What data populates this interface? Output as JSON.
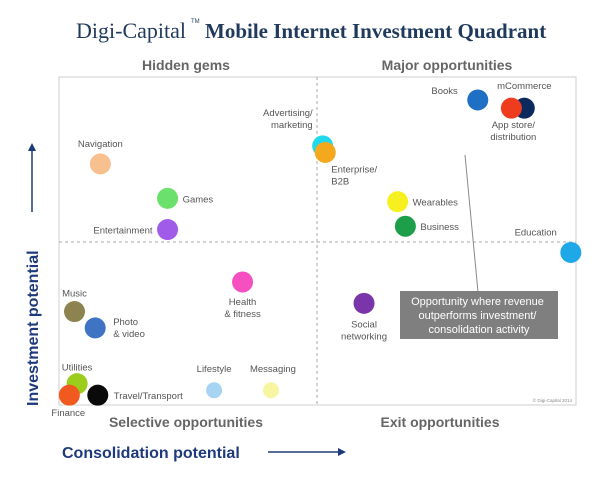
{
  "header": {
    "brand": "Digi-Capital",
    "trademark": "TM",
    "title": "Mobile Internet Investment Quadrant",
    "brand_color": "#1f3a5c",
    "title_color": "#1f3a5c"
  },
  "chart_data": {
    "type": "scatter",
    "xlabel": "Consolidation potential",
    "ylabel": "Investment potential",
    "xlim": [
      0,
      10
    ],
    "ylim": [
      0,
      10
    ],
    "grid": false,
    "quadrants": {
      "top_left": "Hidden gems",
      "top_right": "Major opportunities",
      "bottom_left": "Selective opportunities",
      "bottom_right": "Exit opportunities"
    },
    "callout": "Opportunity where revenue outperforms investment/ consolidation activity",
    "copyright": "© Digi-Capital 2014",
    "points": [
      {
        "label": "Books",
        "x": 8.1,
        "y": 9.3,
        "color": "#1f6fc4"
      },
      {
        "label": "mCommerce",
        "x": 9.0,
        "y": 9.05,
        "color": "#0d2a5c"
      },
      {
        "label": "App store/ distribution",
        "x": 8.75,
        "y": 9.05,
        "color": "#f03c1e"
      },
      {
        "label": "Advertising/ marketing",
        "x": 5.1,
        "y": 7.9,
        "color": "#22d8ec"
      },
      {
        "label": "Enterprise/ B2B",
        "x": 5.15,
        "y": 7.7,
        "color": "#f4a81e"
      },
      {
        "label": "Navigation",
        "x": 0.8,
        "y": 7.35,
        "color": "#f9c08f"
      },
      {
        "label": "Games",
        "x": 2.1,
        "y": 6.3,
        "color": "#6be06b"
      },
      {
        "label": "Wearables",
        "x": 6.55,
        "y": 6.2,
        "color": "#f6f020"
      },
      {
        "label": "Business",
        "x": 6.7,
        "y": 5.45,
        "color": "#1d9f4a"
      },
      {
        "label": "Entertainment",
        "x": 2.1,
        "y": 5.35,
        "color": "#a05ce8"
      },
      {
        "label": "Education",
        "x": 9.9,
        "y": 4.65,
        "color": "#1fa8e8"
      },
      {
        "label": "Health & fitness",
        "x": 3.55,
        "y": 3.75,
        "color": "#f54fc0"
      },
      {
        "label": "Music",
        "x": 0.3,
        "y": 2.85,
        "color": "#8d8350"
      },
      {
        "label": "Social networking",
        "x": 5.9,
        "y": 3.1,
        "color": "#7a36a8"
      },
      {
        "label": "Photo & video",
        "x": 0.7,
        "y": 2.35,
        "color": "#3f74c4"
      },
      {
        "label": "Utilities",
        "x": 0.35,
        "y": 0.65,
        "color": "#9ccc1c"
      },
      {
        "label": "Finance",
        "x": 0.2,
        "y": 0.3,
        "color": "#f05a1e"
      },
      {
        "label": "Travel/Transport",
        "x": 0.75,
        "y": 0.3,
        "color": "#0a0a0a"
      },
      {
        "label": "Lifestyle",
        "x": 3.0,
        "y": 0.45,
        "color": "#a6d4f2"
      },
      {
        "label": "Messaging",
        "x": 4.1,
        "y": 0.45,
        "color": "#f8f5a0"
      }
    ]
  }
}
